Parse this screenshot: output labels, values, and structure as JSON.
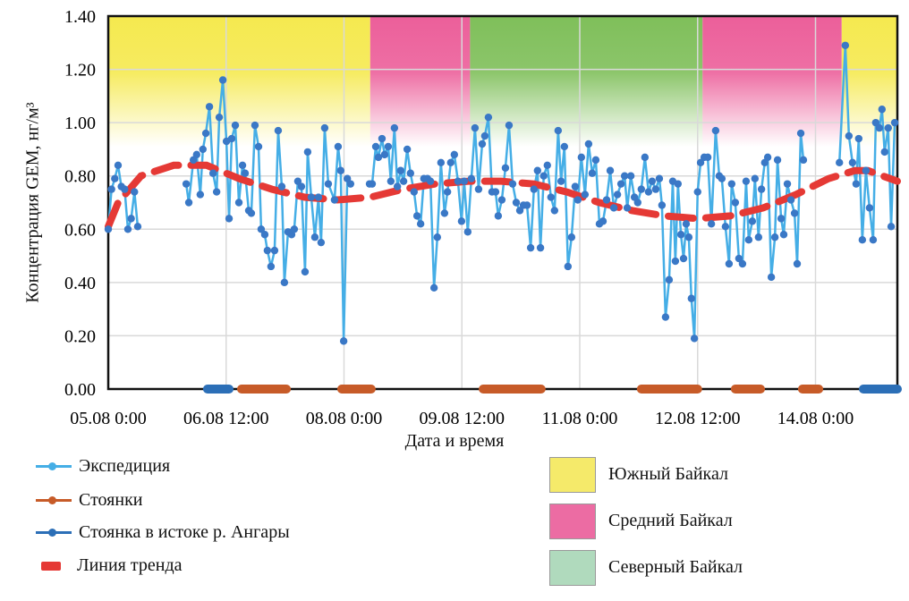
{
  "chart_data": {
    "type": "line",
    "ylabel": "Концентрация GEM,  нг/м³",
    "xlabel": "Дата и время",
    "x_units": "hours since 05.08 0:00",
    "xlim": [
      0,
      241
    ],
    "ylim": [
      0,
      1.4
    ],
    "grid": true,
    "y_ticks": [
      0,
      0.2,
      0.4,
      0.6,
      0.8,
      1.0,
      1.2,
      1.4
    ],
    "y_tick_labels": [
      "0.00",
      "0.20",
      "0.40",
      "0.60",
      "0.80",
      "1.00",
      "1.20",
      "1.40"
    ],
    "x_ticks": [
      0,
      36,
      72,
      108,
      144,
      180,
      216
    ],
    "x_tick_labels": [
      "05.08 0:00",
      "06.08 12:00",
      "08.08 0:00",
      "09.08 12:00",
      "11.08 0:00",
      "12.08 12:00",
      "14.08 0:00"
    ],
    "regions": [
      {
        "name": "Южный Байкал",
        "from": 0,
        "to": 80,
        "color": "#f5e94f"
      },
      {
        "name": "Средний Байкал",
        "from": 80,
        "to": 110.5,
        "color": "#ec5f9a"
      },
      {
        "name": "Северный Байкал",
        "from": 110.5,
        "to": 181.5,
        "color": "#7fbf5a"
      },
      {
        "name": "Средний Байкал",
        "from": 181.5,
        "to": 224,
        "color": "#ec5f9a"
      },
      {
        "name": "Южный Байкал",
        "from": 224,
        "to": 241,
        "color": "#f5e94f"
      }
    ],
    "series": [
      {
        "name": "Экспедиция",
        "color": "#45aee6",
        "marker": "#3a78c6",
        "segments": [
          [
            [
              0,
              0.6
            ],
            [
              1,
              0.75
            ],
            [
              2,
              0.79
            ],
            [
              3,
              0.84
            ],
            [
              4,
              0.76
            ],
            [
              5,
              0.75
            ],
            [
              6,
              0.6
            ],
            [
              7,
              0.64
            ],
            [
              8,
              0.74
            ],
            [
              9,
              0.61
            ]
          ],
          [
            [
              23.8,
              0.77
            ],
            [
              24.6,
              0.7
            ],
            [
              26,
              0.86
            ],
            [
              27,
              0.88
            ],
            [
              28.1,
              0.73
            ],
            [
              28.9,
              0.9
            ],
            [
              29.8,
              0.96
            ],
            [
              30.9,
              1.06
            ],
            [
              32,
              0.81
            ],
            [
              33.1,
              0.74
            ],
            [
              33.9,
              1.02
            ],
            [
              35,
              1.16
            ],
            [
              36.1,
              0.93
            ],
            [
              36.9,
              0.64
            ],
            [
              37.7,
              0.94
            ],
            [
              38.8,
              0.99
            ],
            [
              39.9,
              0.7
            ],
            [
              41,
              0.84
            ],
            [
              41.8,
              0.81
            ],
            [
              42.9,
              0.67
            ],
            [
              43.7,
              0.66
            ],
            [
              44.8,
              0.99
            ],
            [
              45.9,
              0.91
            ],
            [
              46.7,
              0.6
            ],
            [
              47.8,
              0.58
            ],
            [
              48.6,
              0.52
            ],
            [
              49.7,
              0.46
            ],
            [
              50.8,
              0.52
            ],
            [
              51.9,
              0.97
            ],
            [
              53,
              0.76
            ],
            [
              53.8,
              0.4
            ],
            [
              54.9,
              0.59
            ],
            [
              56,
              0.58
            ],
            [
              56.8,
              0.6
            ],
            [
              57.9,
              0.78
            ],
            [
              59,
              0.76
            ],
            [
              60.1,
              0.44
            ],
            [
              60.9,
              0.89
            ],
            [
              62,
              0.72
            ],
            [
              63.1,
              0.57
            ],
            [
              64.2,
              0.72
            ],
            [
              65,
              0.55
            ],
            [
              66.1,
              0.98
            ],
            [
              67.2,
              0.77
            ],
            [
              69.1,
              0.71
            ],
            [
              70.2,
              0.91
            ],
            [
              71,
              0.82
            ],
            [
              71.9,
              0.18
            ],
            [
              73,
              0.79
            ],
            [
              74,
              0.77
            ]
          ],
          [
            [
              79.8,
              0.77
            ],
            [
              80.6,
              0.77
            ],
            [
              81.7,
              0.91
            ],
            [
              82.5,
              0.87
            ],
            [
              83.6,
              0.94
            ],
            [
              84.4,
              0.88
            ],
            [
              85.5,
              0.91
            ],
            [
              86.3,
              0.78
            ],
            [
              87.4,
              0.98
            ],
            [
              88.3,
              0.76
            ],
            [
              89.3,
              0.82
            ],
            [
              90.2,
              0.78
            ],
            [
              91.3,
              0.9
            ],
            [
              92.3,
              0.81
            ],
            [
              93.4,
              0.74
            ],
            [
              94.3,
              0.65
            ],
            [
              95.4,
              0.62
            ],
            [
              96.4,
              0.79
            ],
            [
              97.5,
              0.79
            ],
            [
              98.4,
              0.78
            ],
            [
              99.5,
              0.38
            ],
            [
              100.5,
              0.57
            ],
            [
              101.6,
              0.85
            ],
            [
              102.7,
              0.66
            ],
            [
              103.6,
              0.74
            ],
            [
              104.6,
              0.85
            ],
            [
              105.7,
              0.88
            ],
            [
              106.8,
              0.78
            ],
            [
              107.9,
              0.63
            ],
            [
              108.7,
              0.78
            ],
            [
              109.8,
              0.59
            ],
            [
              110.9,
              0.79
            ],
            [
              112,
              0.98
            ],
            [
              113.1,
              0.75
            ],
            [
              114.2,
              0.92
            ],
            [
              115,
              0.95
            ],
            [
              116.1,
              1.02
            ],
            [
              117.2,
              0.74
            ],
            [
              118.3,
              0.74
            ],
            [
              119.1,
              0.65
            ],
            [
              120.2,
              0.71
            ],
            [
              121.3,
              0.83
            ],
            [
              122.4,
              0.99
            ],
            [
              123.5,
              0.77
            ],
            [
              124.6,
              0.7
            ],
            [
              125.7,
              0.67
            ],
            [
              126.8,
              0.69
            ],
            [
              127.9,
              0.69
            ],
            [
              129,
              0.53
            ],
            [
              130,
              0.75
            ],
            [
              131.1,
              0.82
            ],
            [
              132,
              0.53
            ],
            [
              133,
              0.8
            ],
            [
              134.1,
              0.84
            ],
            [
              135.2,
              0.72
            ],
            [
              136.3,
              0.67
            ],
            [
              137.4,
              0.97
            ],
            [
              138.3,
              0.78
            ],
            [
              139.3,
              0.91
            ],
            [
              140.4,
              0.46
            ],
            [
              141.5,
              0.57
            ],
            [
              142.6,
              0.76
            ],
            [
              143.4,
              0.71
            ],
            [
              144.5,
              0.87
            ],
            [
              145.6,
              0.73
            ],
            [
              146.7,
              0.92
            ],
            [
              147.8,
              0.81
            ],
            [
              148.9,
              0.86
            ],
            [
              150,
              0.62
            ],
            [
              151.1,
              0.63
            ],
            [
              152.2,
              0.71
            ],
            [
              153.3,
              0.82
            ],
            [
              154.4,
              0.68
            ],
            [
              155.5,
              0.73
            ],
            [
              156.6,
              0.77
            ],
            [
              157.7,
              0.8
            ],
            [
              158.5,
              0.68
            ],
            [
              159.6,
              0.8
            ],
            [
              160.7,
              0.72
            ],
            [
              161.7,
              0.7
            ],
            [
              162.8,
              0.75
            ],
            [
              163.9,
              0.87
            ],
            [
              165,
              0.74
            ],
            [
              166.1,
              0.78
            ],
            [
              167.2,
              0.75
            ],
            [
              168.3,
              0.79
            ],
            [
              169.1,
              0.69
            ],
            [
              170.2,
              0.27
            ],
            [
              171.3,
              0.41
            ],
            [
              172.4,
              0.78
            ],
            [
              173.2,
              0.48
            ],
            [
              174,
              0.77
            ],
            [
              174.9,
              0.58
            ],
            [
              175.7,
              0.49
            ],
            [
              176.5,
              0.62
            ],
            [
              177.3,
              0.57
            ],
            [
              178.1,
              0.34
            ],
            [
              179,
              0.19
            ],
            [
              180,
              0.74
            ],
            [
              180.9,
              0.85
            ],
            [
              182,
              0.87
            ],
            [
              183.1,
              0.87
            ],
            [
              184.2,
              0.62
            ],
            [
              185.5,
              0.97
            ],
            [
              186.6,
              0.8
            ],
            [
              187.4,
              0.79
            ],
            [
              188.5,
              0.61
            ],
            [
              189.6,
              0.47
            ],
            [
              190.4,
              0.77
            ],
            [
              191.5,
              0.7
            ],
            [
              192.6,
              0.49
            ],
            [
              193.7,
              0.47
            ],
            [
              194.8,
              0.78
            ],
            [
              195.6,
              0.56
            ],
            [
              196.7,
              0.63
            ],
            [
              197.5,
              0.79
            ],
            [
              198.6,
              0.57
            ],
            [
              199.5,
              0.75
            ],
            [
              200.5,
              0.85
            ],
            [
              201.4,
              0.87
            ],
            [
              202.5,
              0.42
            ],
            [
              203.6,
              0.57
            ],
            [
              204.4,
              0.86
            ],
            [
              205.5,
              0.64
            ],
            [
              206.3,
              0.58
            ],
            [
              207.4,
              0.77
            ],
            [
              208.5,
              0.71
            ],
            [
              209.6,
              0.66
            ],
            [
              210.4,
              0.47
            ],
            [
              211.5,
              0.96
            ],
            [
              212.3,
              0.86
            ]
          ],
          [
            [
              223.3,
              0.85
            ],
            [
              225.1,
              1.29
            ],
            [
              226.2,
              0.95
            ],
            [
              227.3,
              0.85
            ],
            [
              228.4,
              0.77
            ],
            [
              229.2,
              0.94
            ],
            [
              230.3,
              0.56
            ],
            [
              231.4,
              0.82
            ],
            [
              232.5,
              0.68
            ],
            [
              233.6,
              0.56
            ],
            [
              234.4,
              1.0
            ],
            [
              235.5,
              0.98
            ],
            [
              236.3,
              1.05
            ],
            [
              237.1,
              0.89
            ],
            [
              238.2,
              0.98
            ],
            [
              239.1,
              0.61
            ],
            [
              240.2,
              1.0
            ]
          ]
        ]
      },
      {
        "name": "Стоянки",
        "color": "#c75b28",
        "ranges": [
          [
            40.7,
            54.4
          ],
          [
            71.3,
            80.3
          ],
          [
            114.5,
            132.2
          ],
          [
            162.8,
            180
          ],
          [
            191.5,
            199.2
          ],
          [
            212,
            217
          ]
        ]
      },
      {
        "name": "Стоянка в истоке р. Ангары",
        "color": "#2c6fb7",
        "ranges": [
          [
            30.3,
            36.9
          ],
          [
            230.6,
            241
          ]
        ]
      },
      {
        "name": "Линия тренда",
        "color": "#e53935",
        "points": [
          [
            0,
            0.61
          ],
          [
            3,
            0.7
          ],
          [
            10,
            0.8
          ],
          [
            20,
            0.84
          ],
          [
            30,
            0.84
          ],
          [
            40,
            0.79
          ],
          [
            50,
            0.75
          ],
          [
            60,
            0.72
          ],
          [
            70,
            0.71
          ],
          [
            80,
            0.72
          ],
          [
            90,
            0.75
          ],
          [
            100,
            0.77
          ],
          [
            110,
            0.78
          ],
          [
            120,
            0.78
          ],
          [
            130,
            0.77
          ],
          [
            140,
            0.74
          ],
          [
            150,
            0.7
          ],
          [
            160,
            0.67
          ],
          [
            170,
            0.65
          ],
          [
            180,
            0.64
          ],
          [
            190,
            0.65
          ],
          [
            200,
            0.68
          ],
          [
            210,
            0.73
          ],
          [
            220,
            0.79
          ],
          [
            228,
            0.82
          ],
          [
            232,
            0.82
          ],
          [
            241,
            0.78
          ]
        ]
      }
    ],
    "legend": {
      "lines": [
        "Экспедиция",
        "Стоянки",
        "Стоянка в истоке р. Ангары",
        "Линия тренда"
      ],
      "regions": [
        "Южный Байкал",
        "Средний Байкал",
        "Северный Байкал"
      ],
      "placement": "bottom"
    }
  }
}
